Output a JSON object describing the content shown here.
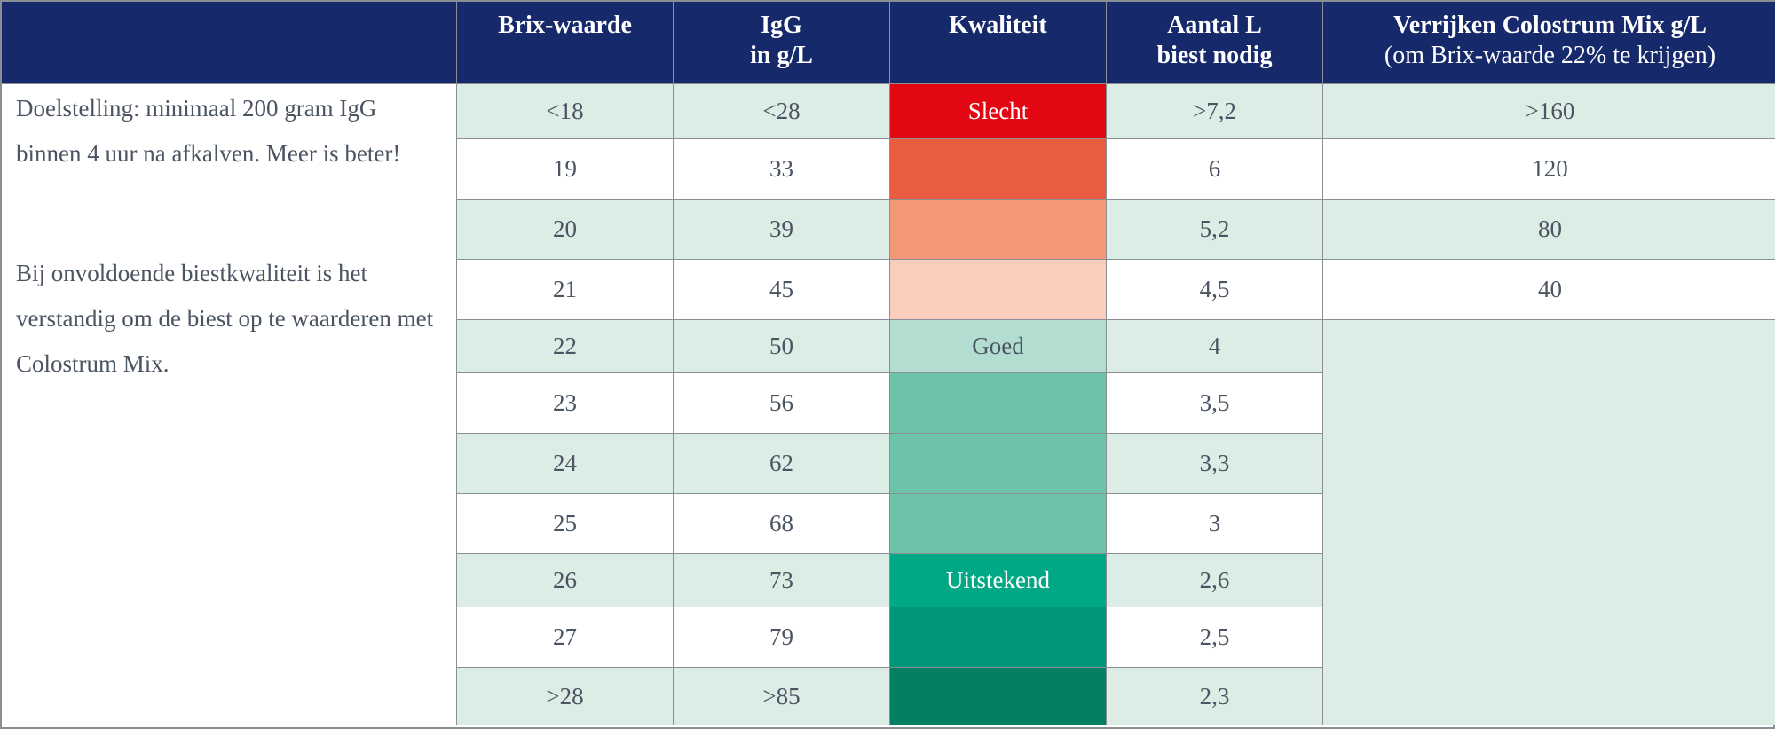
{
  "headers": [
    {
      "line1": "",
      "line2": ""
    },
    {
      "line1": "Brix-waarde",
      "line2": ""
    },
    {
      "line1": "IgG",
      "line2": "in g/L"
    },
    {
      "line1": "Kwaliteit",
      "line2": ""
    },
    {
      "line1": "Aantal L",
      "line2": "biest nodig"
    },
    {
      "line1": "Verrijken Colostrum Mix g/L",
      "line2": "(om Brix-waarde 22% te krijgen)"
    }
  ],
  "description": {
    "paragraph1": "Doelstelling: minimaal 200 gram IgG binnen 4 uur na afkalven. Meer is beter!",
    "paragraph2": "Bij onvoldoende biestkwaliteit is het verstandig om de biest op te waarderen met Colostrum Mix."
  },
  "rows": [
    {
      "brix": "<18",
      "igg": "<28",
      "quality": "Slecht",
      "quality_color": "#e30613",
      "liters": ">7,2",
      "enrich": ">160"
    },
    {
      "brix": "19",
      "igg": "33",
      "quality": "",
      "quality_color": "#ea5c40",
      "liters": "6",
      "enrich": "120"
    },
    {
      "brix": "20",
      "igg": "39",
      "quality": "",
      "quality_color": "#f29878",
      "liters": "5,2",
      "enrich": "80"
    },
    {
      "brix": "21",
      "igg": "45",
      "quality": "",
      "quality_color": "#facdbd",
      "liters": "4,5",
      "enrich": "40"
    },
    {
      "brix": "22",
      "igg": "50",
      "quality": "Goed",
      "quality_color": "#b3ddd0",
      "liters": "4",
      "enrich": ""
    },
    {
      "brix": "23",
      "igg": "56",
      "quality": "",
      "quality_color": "#6dc2aa",
      "liters": "3,5",
      "enrich": ""
    },
    {
      "brix": "24",
      "igg": "62",
      "quality": "",
      "quality_color": "#6dc2aa",
      "liters": "3,3",
      "enrich": ""
    },
    {
      "brix": "25",
      "igg": "68",
      "quality": "",
      "quality_color": "#6dc2aa",
      "liters": "3",
      "enrich": ""
    },
    {
      "brix": "26",
      "igg": "73",
      "quality": "Uitstekend",
      "quality_color": "#00a886",
      "liters": "2,6",
      "enrich": ""
    },
    {
      "brix": "27",
      "igg": "79",
      "quality": "",
      "quality_color": "#009678",
      "liters": "2,5",
      "enrich": ""
    },
    {
      "brix": ">28",
      "igg": ">85",
      "quality": "",
      "quality_color": "#057f64",
      "liters": "2,3",
      "enrich": ""
    }
  ],
  "colors": {
    "header_bg": "#16296a",
    "row_tint": "#dcede6"
  }
}
